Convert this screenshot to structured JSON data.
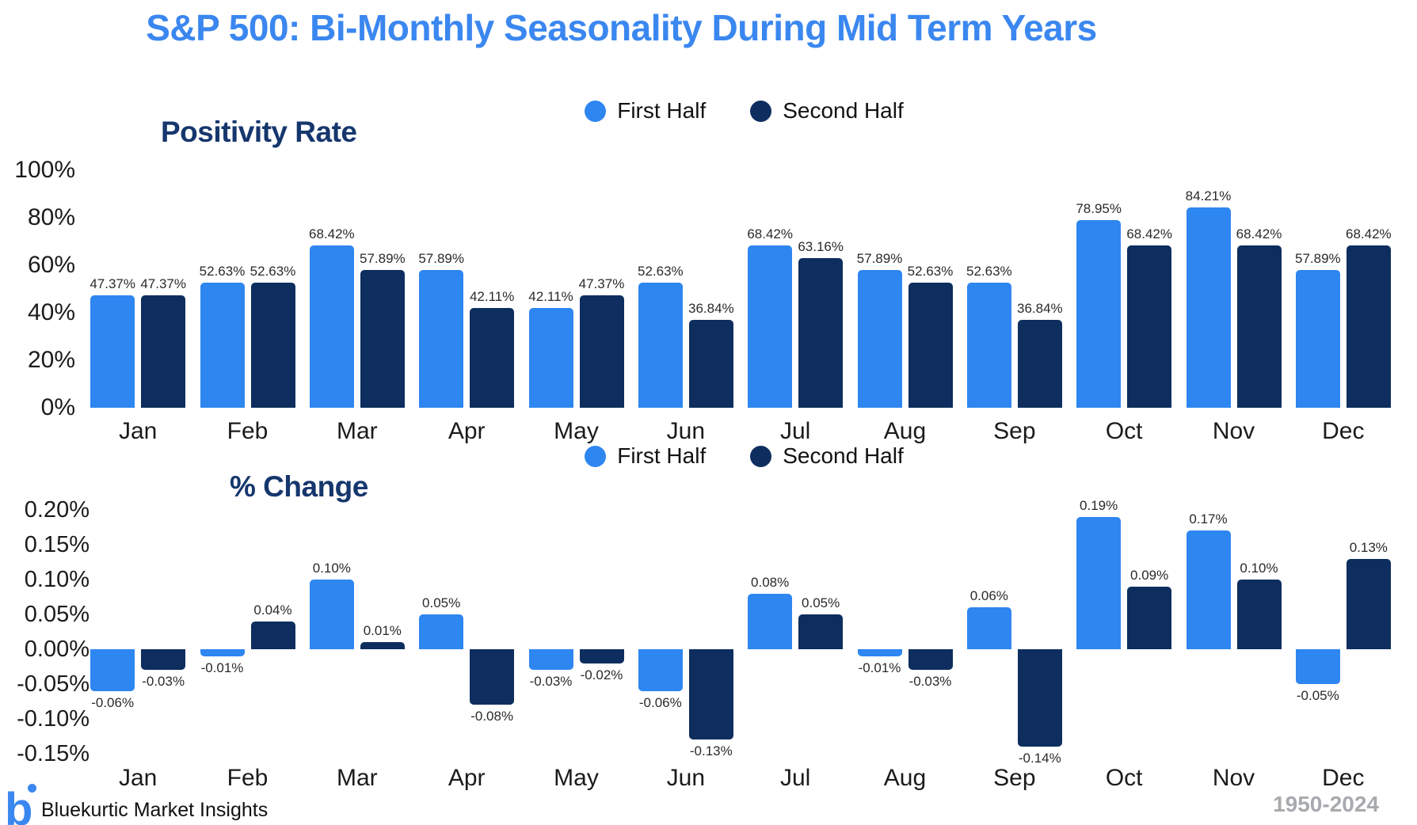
{
  "title": "S&P 500: Bi-Monthly Seasonality During Mid Term Years",
  "legend": {
    "first_half": "First Half",
    "second_half": "Second Half"
  },
  "colors": {
    "first_half": "#2E86F0",
    "second_half": "#0D2E5E",
    "title": "#3B87F0",
    "heading": "#16376D",
    "label_text": "#2a2a2a",
    "years_text": "#A7AAAE"
  },
  "footer": {
    "logo": "b",
    "brand": "Bluekurtic Market Insights",
    "years": "1950-2024"
  },
  "chart_data": [
    {
      "type": "bar",
      "title": "Positivity Rate",
      "categories": [
        "Jan",
        "Feb",
        "Mar",
        "Apr",
        "May",
        "Jun",
        "Jul",
        "Aug",
        "Sep",
        "Oct",
        "Nov",
        "Dec"
      ],
      "series": [
        {
          "name": "First Half",
          "values": [
            47.37,
            52.63,
            68.42,
            57.89,
            42.11,
            52.63,
            68.42,
            57.89,
            52.63,
            78.95,
            84.21,
            57.89
          ]
        },
        {
          "name": "Second Half",
          "values": [
            47.37,
            52.63,
            57.89,
            42.11,
            47.37,
            36.84,
            63.16,
            52.63,
            36.84,
            68.42,
            68.42,
            68.42
          ]
        }
      ],
      "ylim": [
        0,
        100
      ],
      "yticks": [
        100,
        80,
        60,
        40,
        20,
        0
      ],
      "ytick_labels": [
        "100%",
        "80%",
        "60%",
        "40%",
        "20%",
        "0%"
      ],
      "value_suffix": "%",
      "grid": false,
      "legend_position": "top"
    },
    {
      "type": "bar",
      "title": "% Change",
      "categories": [
        "Jan",
        "Feb",
        "Mar",
        "Apr",
        "May",
        "Jun",
        "Jul",
        "Aug",
        "Sep",
        "Oct",
        "Nov",
        "Dec"
      ],
      "series": [
        {
          "name": "First Half",
          "values": [
            -0.06,
            -0.01,
            0.1,
            0.05,
            -0.03,
            -0.06,
            0.08,
            -0.01,
            0.06,
            0.19,
            0.17,
            -0.05
          ]
        },
        {
          "name": "Second Half",
          "values": [
            -0.03,
            0.04,
            0.01,
            -0.08,
            -0.02,
            -0.13,
            0.05,
            -0.03,
            -0.14,
            0.09,
            0.1,
            0.13
          ]
        }
      ],
      "ylim": [
        -0.15,
        0.2
      ],
      "yticks": [
        0.2,
        0.15,
        0.1,
        0.05,
        0.0,
        -0.05,
        -0.1,
        -0.15
      ],
      "ytick_labels": [
        "0.20%",
        "0.15%",
        "0.10%",
        "0.05%",
        "0.00%",
        "-0.05%",
        "-0.10%",
        "-0.15%"
      ],
      "value_suffix": "%",
      "grid": false,
      "legend_position": "top"
    }
  ]
}
